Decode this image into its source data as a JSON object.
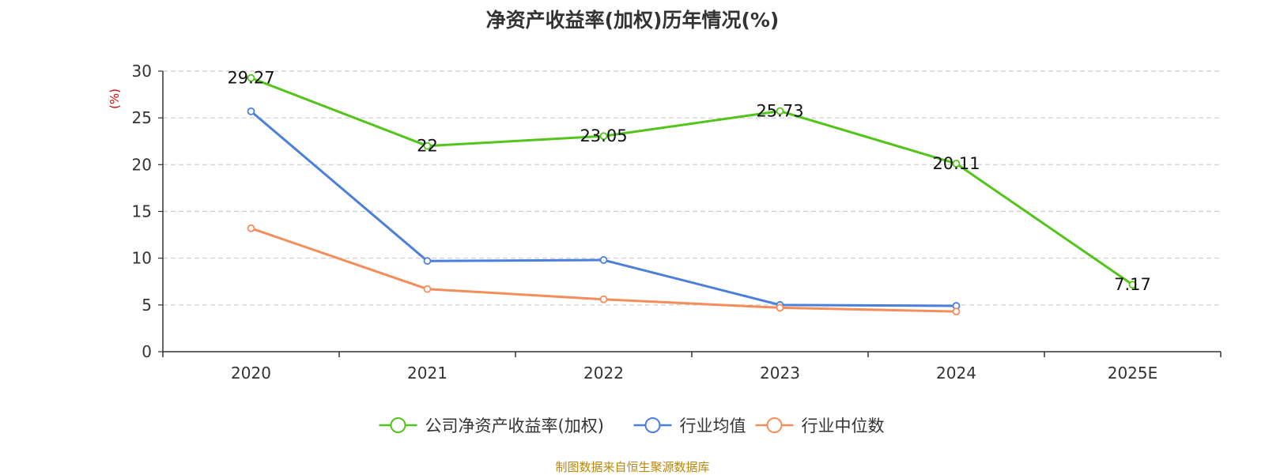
{
  "chart_data": {
    "type": "line",
    "title": "净资产收益率(加权)历年情况(%)",
    "ylabel": "(%)",
    "xlabel": "",
    "categories": [
      "2020",
      "2021",
      "2022",
      "2023",
      "2024",
      "2025E"
    ],
    "ylim": [
      0,
      30
    ],
    "yticks": [
      0,
      5,
      10,
      15,
      20,
      25,
      30
    ],
    "grid": true,
    "legend_position": "bottom-center",
    "series": [
      {
        "name": "公司净资产收益率(加权)",
        "color": "#52c41a",
        "values": [
          29.27,
          22,
          23.05,
          25.73,
          20.11,
          7.17
        ],
        "show_labels": true
      },
      {
        "name": "行业均值",
        "color": "#4a7fdc",
        "values": [
          25.7,
          9.7,
          9.8,
          5.0,
          4.9,
          null
        ],
        "show_labels": false
      },
      {
        "name": "行业中位数",
        "color": "#f58d5a",
        "values": [
          13.2,
          6.7,
          5.6,
          4.7,
          4.3,
          null
        ],
        "show_labels": false
      }
    ]
  },
  "footer": {
    "source": "制图数据来自恒生聚源数据库"
  }
}
